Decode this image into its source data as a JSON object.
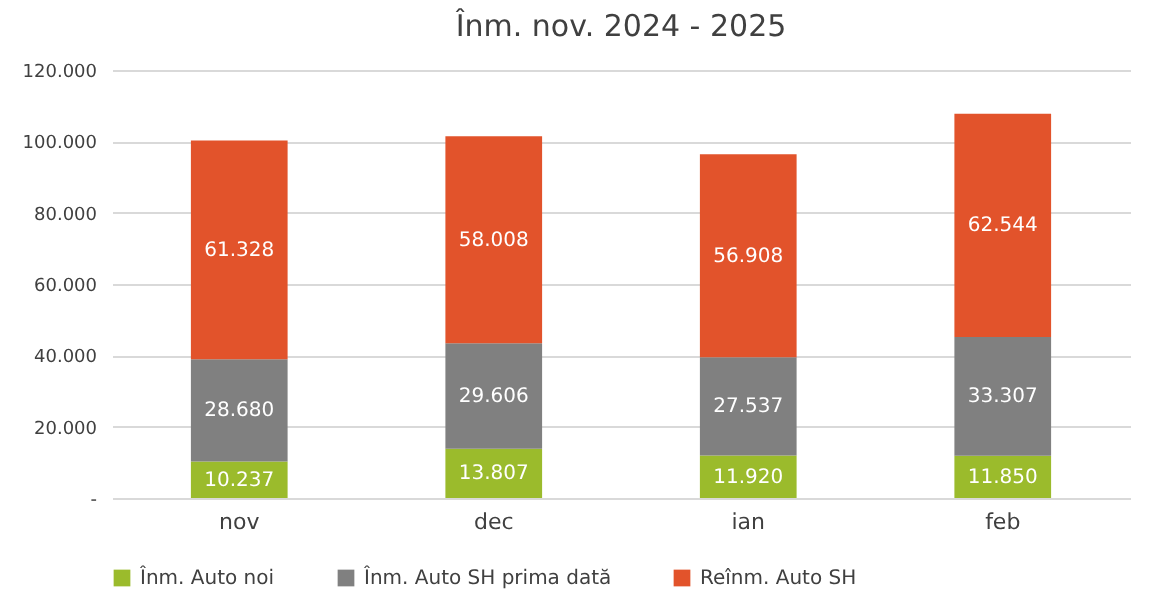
{
  "chart_data": {
    "type": "bar",
    "title": "Înm. nov. 2024 - 2025",
    "stacked": true,
    "categories": [
      "nov",
      "dec",
      "ian",
      "feb"
    ],
    "series": [
      {
        "name": "Înm. Auto noi",
        "color": "#9bbb2c",
        "values": [
          10237,
          13807,
          11920,
          11850
        ],
        "value_labels": [
          "10.237",
          "13.807",
          "11.920",
          "11.850"
        ]
      },
      {
        "name": "Înm. Auto SH prima dată",
        "color": "#808080",
        "values": [
          28680,
          29606,
          27537,
          33307
        ],
        "value_labels": [
          "28.680",
          "29.606",
          "27.537",
          "33.307"
        ]
      },
      {
        "name": "Reînm. Auto SH",
        "color": "#e2532b",
        "values": [
          61328,
          58008,
          56908,
          62544
        ],
        "value_labels": [
          "61.328",
          "58.008",
          "56.908",
          "62.544"
        ]
      }
    ],
    "ylim": [
      0,
      120000
    ],
    "yticks": [
      {
        "value": 0,
        "label": "-"
      },
      {
        "value": 20000,
        "label": "20.000"
      },
      {
        "value": 40000,
        "label": "40.000"
      },
      {
        "value": 60000,
        "label": "60.000"
      },
      {
        "value": 80000,
        "label": "80.000"
      },
      {
        "value": 100000,
        "label": "100.000"
      },
      {
        "value": 120000,
        "label": "120.000"
      }
    ],
    "grid": "y",
    "legend": "bottom"
  }
}
